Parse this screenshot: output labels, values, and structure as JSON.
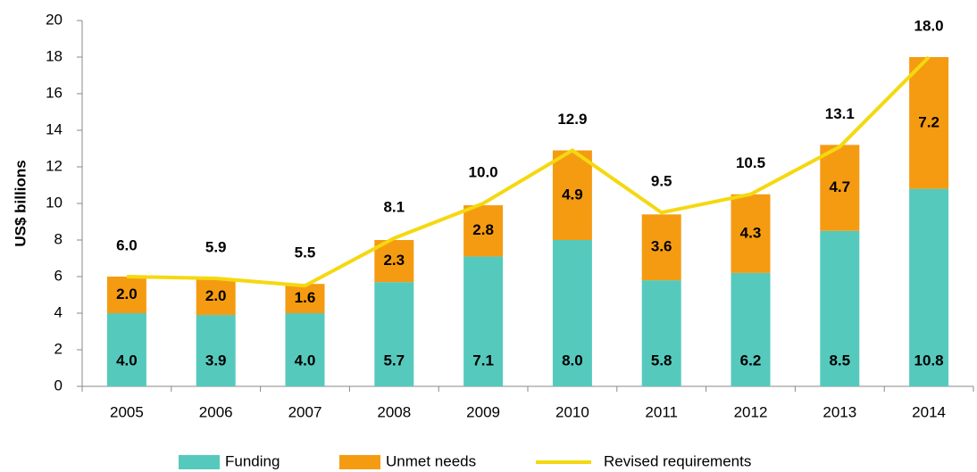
{
  "chart_data": {
    "type": "stacked-bar-line",
    "y_label": "US$ billions",
    "categories": [
      "2005",
      "2006",
      "2007",
      "2008",
      "2009",
      "2010",
      "2011",
      "2012",
      "2013",
      "2014"
    ],
    "series": [
      {
        "name": "Funding",
        "kind": "bar",
        "color": "#56c9bd",
        "values": [
          4.0,
          3.9,
          4.0,
          5.7,
          7.1,
          8.0,
          5.8,
          6.2,
          8.5,
          10.8
        ],
        "value_labels": [
          "4.0",
          "3.9",
          "4.0",
          "5.7",
          "7.1",
          "8.0",
          "5.8",
          "6.2",
          "8.5",
          "10.8"
        ]
      },
      {
        "name": "Unmet needs",
        "kind": "bar",
        "color": "#f59b12",
        "values": [
          2.0,
          2.0,
          1.6,
          2.3,
          2.8,
          4.9,
          3.6,
          4.3,
          4.7,
          7.2
        ],
        "value_labels": [
          "2.0",
          "2.0",
          "1.6",
          "2.3",
          "2.8",
          "4.9",
          "3.6",
          "4.3",
          "4.7",
          "7.2"
        ]
      },
      {
        "name": "Revised requirements",
        "kind": "line",
        "color": "#f5d80f",
        "values": [
          6.0,
          5.9,
          5.5,
          8.1,
          10.0,
          12.9,
          9.5,
          10.5,
          13.1,
          18.0
        ],
        "value_labels": [
          "6.0",
          "5.9",
          "5.5",
          "8.1",
          "10.0",
          "12.9",
          "9.5",
          "10.5",
          "13.1",
          "18.0"
        ]
      }
    ],
    "ylim": [
      0,
      20
    ],
    "yticks": [
      0,
      2,
      4,
      6,
      8,
      10,
      12,
      14,
      16,
      18,
      20
    ]
  }
}
